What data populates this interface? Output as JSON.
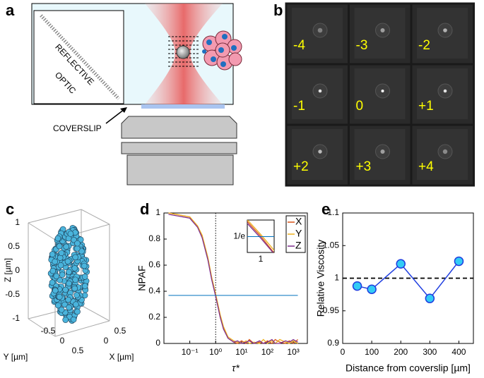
{
  "panel_labels": [
    "a",
    "b",
    "c",
    "d",
    "e"
  ],
  "diagram": {
    "optic_label": [
      "REFLECTIVE",
      "OPTIC"
    ],
    "coverslip_label": "COVERSLIP"
  },
  "image_grid": {
    "labels": [
      "-4",
      "-3",
      "-2",
      "-1",
      "0",
      "+1",
      "+2",
      "+3",
      "+4"
    ]
  },
  "scatter3d": {
    "zlabel": "Z [µm]",
    "ylabel": "Y [µm]",
    "xlabel": "X [µm]",
    "zticks": [
      1,
      0.5,
      0,
      -0.5,
      -1
    ],
    "yticks": [
      -0.5,
      0,
      0.5
    ],
    "xticks": [
      0,
      0.5
    ]
  },
  "chart_data": [
    {
      "type": "line",
      "xlabel": "τ*",
      "ylabel": "NPAF",
      "xlog": true,
      "xlim": [
        0.01,
        3500
      ],
      "ylim": [
        0,
        1
      ],
      "xticks": [
        {
          "value": 0.1,
          "label": "10⁻¹"
        },
        {
          "value": 1,
          "label": "10⁰"
        },
        {
          "value": 10,
          "label": "10¹"
        },
        {
          "value": 100,
          "label": "10²"
        },
        {
          "value": 1000,
          "label": "10³"
        }
      ],
      "yticks": [
        0,
        0.2,
        0.4,
        0.6,
        0.8,
        1
      ],
      "x": [
        0.015,
        0.1,
        0.2,
        0.3,
        0.5,
        0.7,
        1,
        1.5,
        2,
        3,
        5,
        7,
        10,
        15,
        20,
        30,
        50,
        70,
        100,
        150,
        200,
        300,
        500,
        700,
        1000,
        1500
      ],
      "series": [
        {
          "name": "X",
          "color": "#d95319",
          "values": [
            1.0,
            0.97,
            0.9,
            0.82,
            0.65,
            0.5,
            0.37,
            0.2,
            0.12,
            0.04,
            0.01,
            0.0,
            0.02,
            0.0,
            0.03,
            0.0,
            0.01,
            0.0,
            0.02,
            0.0,
            0.03,
            0.01,
            0.0,
            0.02,
            0.0,
            0.03
          ]
        },
        {
          "name": "Y",
          "color": "#edb120",
          "values": [
            1.0,
            0.97,
            0.9,
            0.83,
            0.66,
            0.51,
            0.38,
            0.22,
            0.13,
            0.05,
            0.02,
            0.01,
            0.0,
            0.02,
            0.0,
            0.01,
            0.0,
            0.03,
            0.0,
            0.02,
            0.0,
            0.03,
            0.01,
            0.0,
            0.02,
            0.0
          ]
        },
        {
          "name": "Z",
          "color": "#7e2f8e",
          "values": [
            0.99,
            0.96,
            0.89,
            0.81,
            0.64,
            0.49,
            0.36,
            0.2,
            0.11,
            0.04,
            0.01,
            0.02,
            0.0,
            0.01,
            0.02,
            0.0,
            0.02,
            0.0,
            0.01,
            0.03,
            0.0,
            0.0,
            0.02,
            0.01,
            0.03,
            0.01
          ]
        }
      ],
      "hline": 0.368,
      "hline_color": "#0072bd",
      "vline": 1,
      "inset_xlim": [
        0.8,
        1.25
      ],
      "inset_ylim": [
        0.28,
        0.46
      ],
      "inset_xticks": [
        1
      ],
      "inset_yticks": [
        {
          "value": 0.368,
          "label": "1/e"
        }
      ],
      "legend": "upper right"
    },
    {
      "type": "line",
      "xlabel": "Distance from coverslip [µm]",
      "ylabel": "Relative Viscosity",
      "xlim": [
        0,
        450
      ],
      "ylim": [
        0.9,
        1.1
      ],
      "xticks": [
        0,
        100,
        200,
        300,
        400
      ],
      "yticks": [
        0.9,
        0.95,
        1,
        1.05,
        1.1
      ],
      "x": [
        50,
        100,
        200,
        300,
        400
      ],
      "values": [
        0.988,
        0.983,
        1.022,
        0.969,
        1.026
      ],
      "color": "#1f3ee0",
      "marker_color": "#33ccf5",
      "refline": 1
    }
  ]
}
